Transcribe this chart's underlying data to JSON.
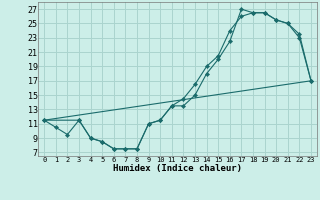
{
  "xlabel": "Humidex (Indice chaleur)",
  "background_color": "#cceee8",
  "grid_color": "#aad4ce",
  "line_color": "#1a6b6b",
  "xlim": [
    -0.5,
    23.5
  ],
  "ylim": [
    6.5,
    28
  ],
  "xticks": [
    0,
    1,
    2,
    3,
    4,
    5,
    6,
    7,
    8,
    9,
    10,
    11,
    12,
    13,
    14,
    15,
    16,
    17,
    18,
    19,
    20,
    21,
    22,
    23
  ],
  "yticks": [
    7,
    9,
    11,
    13,
    15,
    17,
    19,
    21,
    23,
    25,
    27
  ],
  "curve1_x": [
    0,
    1,
    2,
    3,
    4,
    5,
    6,
    7,
    8,
    9,
    10,
    11,
    12,
    13,
    14,
    15,
    16,
    17,
    18,
    19,
    20,
    21,
    22,
    23
  ],
  "curve1_y": [
    11.5,
    10.5,
    9.5,
    11.5,
    9.0,
    8.5,
    7.5,
    7.5,
    7.5,
    11.0,
    11.5,
    13.5,
    13.5,
    15.0,
    18.0,
    20.0,
    22.5,
    27.0,
    26.5,
    26.5,
    25.5,
    25.0,
    23.5,
    17.0
  ],
  "curve2_x": [
    0,
    3,
    4,
    5,
    6,
    7,
    8,
    9,
    10,
    11,
    12,
    13,
    14,
    15,
    16,
    17,
    18,
    19,
    20,
    21,
    22,
    23
  ],
  "curve2_y": [
    11.5,
    11.5,
    9.0,
    8.5,
    7.5,
    7.5,
    7.5,
    11.0,
    11.5,
    13.5,
    14.5,
    16.5,
    19.0,
    20.5,
    24.0,
    26.0,
    26.5,
    26.5,
    25.5,
    25.0,
    23.0,
    17.0
  ],
  "curve3_x": [
    0,
    23
  ],
  "curve3_y": [
    11.5,
    17.0
  ],
  "marker": "D",
  "markersize": 2.2
}
